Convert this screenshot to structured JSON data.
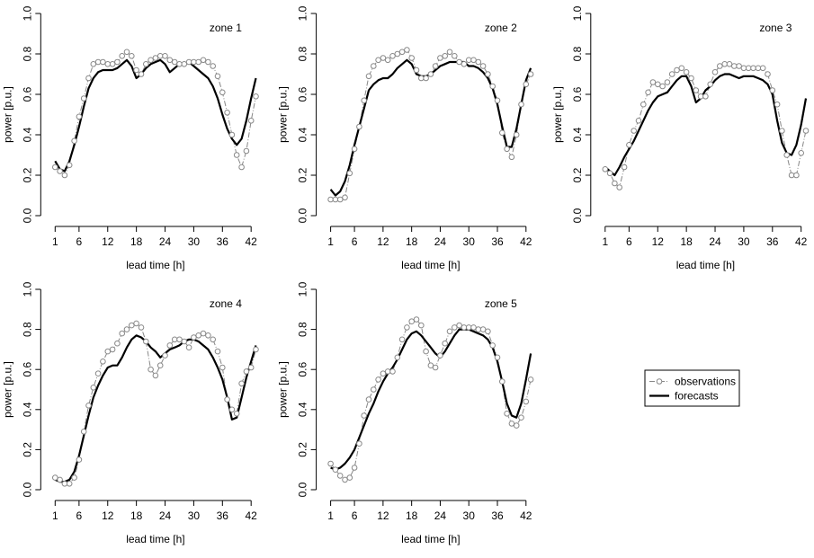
{
  "chart_data": [
    {
      "type": "line",
      "title": "zone 1",
      "xlabel": "lead time [h]",
      "ylabel": "power [p.u.]",
      "xlim": [
        1,
        43
      ],
      "ylim": [
        0,
        1
      ],
      "xticks": [
        1,
        6,
        12,
        18,
        24,
        30,
        36,
        42
      ],
      "yticks": [
        0.0,
        0.2,
        0.4,
        0.6,
        0.8,
        1.0
      ],
      "ytick_labels": [
        "0.0",
        "0.2",
        "0.4",
        "0.6",
        "0.8",
        "1.0"
      ],
      "grid": false,
      "series": [
        {
          "name": "observations",
          "style": "points-dashed",
          "values": [
            0.24,
            0.22,
            0.2,
            0.25,
            0.37,
            0.49,
            0.58,
            0.68,
            0.75,
            0.76,
            0.76,
            0.75,
            0.75,
            0.76,
            0.79,
            0.81,
            0.79,
            0.72,
            0.7,
            0.75,
            0.77,
            0.78,
            0.79,
            0.79,
            0.77,
            0.76,
            0.75,
            0.75,
            0.76,
            0.76,
            0.76,
            0.77,
            0.76,
            0.74,
            0.69,
            0.61,
            0.51,
            0.4,
            0.3,
            0.24,
            0.32,
            0.47,
            0.59
          ]
        },
        {
          "name": "forecasts",
          "style": "thick-line",
          "values": [
            0.27,
            0.23,
            0.22,
            0.27,
            0.35,
            0.44,
            0.54,
            0.63,
            0.68,
            0.71,
            0.72,
            0.72,
            0.72,
            0.73,
            0.75,
            0.77,
            0.74,
            0.68,
            0.7,
            0.73,
            0.75,
            0.76,
            0.77,
            0.75,
            0.71,
            0.73,
            0.75,
            0.75,
            0.76,
            0.74,
            0.72,
            0.7,
            0.68,
            0.64,
            0.58,
            0.5,
            0.43,
            0.38,
            0.35,
            0.38,
            0.47,
            0.58,
            0.68
          ]
        }
      ]
    },
    {
      "type": "line",
      "title": "zone 2",
      "xlabel": "lead time [h]",
      "ylabel": "power [p.u.]",
      "xlim": [
        1,
        43
      ],
      "ylim": [
        0,
        1
      ],
      "xticks": [
        1,
        6,
        12,
        18,
        24,
        30,
        36,
        42
      ],
      "yticks": [
        0.0,
        0.2,
        0.4,
        0.6,
        0.8,
        1.0
      ],
      "ytick_labels": [
        "0.0",
        "0.2",
        "0.4",
        "0.6",
        "0.8",
        "1.0"
      ],
      "grid": false,
      "series": [
        {
          "name": "observations",
          "style": "points-dashed",
          "values": [
            0.08,
            0.08,
            0.08,
            0.09,
            0.21,
            0.33,
            0.44,
            0.57,
            0.69,
            0.74,
            0.77,
            0.78,
            0.77,
            0.79,
            0.8,
            0.81,
            0.82,
            0.78,
            0.72,
            0.68,
            0.68,
            0.7,
            0.74,
            0.78,
            0.79,
            0.81,
            0.79,
            0.76,
            0.75,
            0.77,
            0.77,
            0.76,
            0.74,
            0.7,
            0.64,
            0.57,
            0.41,
            0.33,
            0.29,
            0.4,
            0.55,
            0.65,
            0.7
          ]
        },
        {
          "name": "forecasts",
          "style": "thick-line",
          "values": [
            0.13,
            0.1,
            0.12,
            0.17,
            0.25,
            0.35,
            0.44,
            0.53,
            0.62,
            0.65,
            0.67,
            0.68,
            0.68,
            0.7,
            0.73,
            0.75,
            0.77,
            0.75,
            0.7,
            0.69,
            0.69,
            0.7,
            0.72,
            0.74,
            0.75,
            0.76,
            0.76,
            0.76,
            0.76,
            0.74,
            0.74,
            0.73,
            0.71,
            0.68,
            0.63,
            0.55,
            0.44,
            0.34,
            0.34,
            0.43,
            0.55,
            0.67,
            0.73
          ]
        }
      ]
    },
    {
      "type": "line",
      "title": "zone 3",
      "xlabel": "lead time [h]",
      "ylabel": "power [p.u.]",
      "xlim": [
        1,
        43
      ],
      "ylim": [
        0,
        1
      ],
      "xticks": [
        1,
        6,
        12,
        18,
        24,
        30,
        36,
        42
      ],
      "yticks": [
        0.0,
        0.2,
        0.4,
        0.6,
        0.8,
        1.0
      ],
      "ytick_labels": [
        "0.0",
        "0.2",
        "0.4",
        "0.6",
        "0.8",
        "1.0"
      ],
      "grid": false,
      "series": [
        {
          "name": "observations",
          "style": "points-dashed",
          "values": [
            0.23,
            0.21,
            0.16,
            0.14,
            0.24,
            0.35,
            0.42,
            0.47,
            0.55,
            0.61,
            0.66,
            0.65,
            0.64,
            0.66,
            0.7,
            0.72,
            0.73,
            0.71,
            0.68,
            0.62,
            0.59,
            0.59,
            0.65,
            0.71,
            0.74,
            0.75,
            0.75,
            0.74,
            0.74,
            0.73,
            0.73,
            0.73,
            0.73,
            0.73,
            0.7,
            0.62,
            0.55,
            0.42,
            0.3,
            0.2,
            0.2,
            0.31,
            0.42
          ]
        },
        {
          "name": "forecasts",
          "style": "thick-line",
          "values": [
            0.24,
            0.22,
            0.2,
            0.24,
            0.29,
            0.33,
            0.37,
            0.42,
            0.47,
            0.52,
            0.56,
            0.59,
            0.6,
            0.61,
            0.64,
            0.67,
            0.69,
            0.69,
            0.64,
            0.56,
            0.58,
            0.62,
            0.64,
            0.67,
            0.69,
            0.7,
            0.7,
            0.69,
            0.68,
            0.69,
            0.69,
            0.69,
            0.68,
            0.67,
            0.65,
            0.6,
            0.47,
            0.36,
            0.31,
            0.3,
            0.35,
            0.45,
            0.58
          ]
        }
      ]
    },
    {
      "type": "line",
      "title": "zone 4",
      "xlabel": "lead time [h]",
      "ylabel": "power [p.u.]",
      "xlim": [
        1,
        43
      ],
      "ylim": [
        0,
        1
      ],
      "xticks": [
        1,
        6,
        12,
        18,
        24,
        30,
        36,
        42
      ],
      "yticks": [
        0.0,
        0.2,
        0.4,
        0.6,
        0.8,
        1.0
      ],
      "ytick_labels": [
        "0.0",
        "0.2",
        "0.4",
        "0.6",
        "0.8",
        "1.0"
      ],
      "grid": false,
      "series": [
        {
          "name": "observations",
          "style": "points-dashed",
          "values": [
            0.06,
            0.05,
            0.03,
            0.03,
            0.06,
            0.15,
            0.29,
            0.42,
            0.51,
            0.58,
            0.64,
            0.69,
            0.7,
            0.73,
            0.78,
            0.8,
            0.82,
            0.83,
            0.81,
            0.74,
            0.6,
            0.57,
            0.62,
            0.67,
            0.72,
            0.75,
            0.75,
            0.74,
            0.71,
            0.76,
            0.77,
            0.78,
            0.77,
            0.75,
            0.69,
            0.61,
            0.45,
            0.4,
            0.38,
            0.53,
            0.59,
            0.61,
            0.7
          ]
        },
        {
          "name": "forecasts",
          "style": "thick-line",
          "values": [
            0.05,
            0.04,
            0.04,
            0.05,
            0.09,
            0.17,
            0.27,
            0.37,
            0.46,
            0.52,
            0.57,
            0.61,
            0.62,
            0.62,
            0.66,
            0.71,
            0.75,
            0.77,
            0.76,
            0.74,
            0.71,
            0.69,
            0.66,
            0.68,
            0.7,
            0.71,
            0.72,
            0.74,
            0.75,
            0.75,
            0.74,
            0.72,
            0.7,
            0.66,
            0.61,
            0.55,
            0.46,
            0.35,
            0.36,
            0.46,
            0.56,
            0.64,
            0.72
          ]
        }
      ]
    },
    {
      "type": "line",
      "title": "zone 5",
      "xlabel": "lead time [h]",
      "ylabel": "power [p.u.]",
      "xlim": [
        1,
        43
      ],
      "ylim": [
        0,
        1
      ],
      "xticks": [
        1,
        6,
        12,
        18,
        24,
        30,
        36,
        42
      ],
      "yticks": [
        0.0,
        0.2,
        0.4,
        0.6,
        0.8,
        1.0
      ],
      "ytick_labels": [
        "0.0",
        "0.2",
        "0.4",
        "0.6",
        "0.8",
        "1.0"
      ],
      "grid": false,
      "series": [
        {
          "name": "observations",
          "style": "points-dashed",
          "values": [
            0.13,
            0.1,
            0.07,
            0.05,
            0.06,
            0.11,
            0.23,
            0.37,
            0.45,
            0.5,
            0.55,
            0.58,
            0.59,
            0.59,
            0.66,
            0.75,
            0.81,
            0.84,
            0.85,
            0.82,
            0.69,
            0.62,
            0.61,
            0.67,
            0.73,
            0.79,
            0.81,
            0.82,
            0.81,
            0.81,
            0.81,
            0.8,
            0.8,
            0.79,
            0.72,
            0.66,
            0.54,
            0.38,
            0.33,
            0.32,
            0.36,
            0.44,
            0.55
          ]
        },
        {
          "name": "forecasts",
          "style": "thick-line",
          "values": [
            0.11,
            0.1,
            0.11,
            0.13,
            0.16,
            0.2,
            0.26,
            0.32,
            0.38,
            0.43,
            0.49,
            0.54,
            0.58,
            0.61,
            0.65,
            0.7,
            0.75,
            0.78,
            0.79,
            0.77,
            0.74,
            0.71,
            0.68,
            0.66,
            0.69,
            0.73,
            0.77,
            0.8,
            0.8,
            0.8,
            0.79,
            0.78,
            0.77,
            0.75,
            0.71,
            0.64,
            0.54,
            0.43,
            0.37,
            0.36,
            0.43,
            0.55,
            0.68
          ]
        }
      ]
    }
  ],
  "legend": {
    "placement": "bottom-right",
    "entries": [
      {
        "label": "observations",
        "symbol": "open-circle-dashed"
      },
      {
        "label": "forecasts",
        "symbol": "thick-line"
      }
    ]
  },
  "colors": {
    "observations": "#888888",
    "forecasts": "#000000",
    "axes": "#000000"
  }
}
